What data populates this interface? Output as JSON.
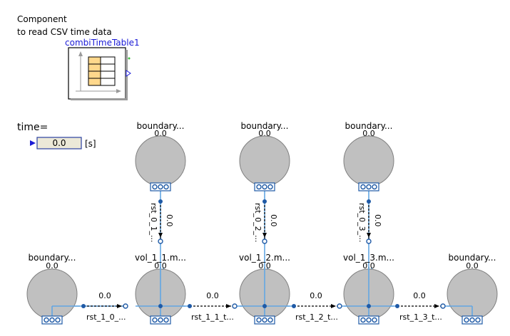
{
  "comment": {
    "line1": "Component",
    "line2": "to read CSV time data"
  },
  "table_component": {
    "name": "combiTimeTable1"
  },
  "time_display": {
    "label": "time=",
    "value": "0.0",
    "unit": "[s]"
  },
  "top_boundaries": [
    {
      "name": "boundary...",
      "value": "0.0"
    },
    {
      "name": "boundary...",
      "value": "0.0"
    },
    {
      "name": "boundary...",
      "value": "0.0"
    }
  ],
  "bottom_left_boundary": {
    "name": "boundary...",
    "value": "0.0"
  },
  "bottom_right_boundary": {
    "name": "boundary...",
    "value": "0.0"
  },
  "volumes": [
    {
      "name": "vol_1_1.m...",
      "value": "0.0"
    },
    {
      "name": "vol_1_2.m...",
      "value": "0.0"
    },
    {
      "name": "vol_1_3.m...",
      "value": "0.0"
    }
  ],
  "vertical_resistors": [
    {
      "name": "rst_0_1_...",
      "value": "0.0"
    },
    {
      "name": "rst_0_2_...",
      "value": "0.0"
    },
    {
      "name": "rst_0_3_...",
      "value": "0.0"
    }
  ],
  "horizontal_resistors": [
    {
      "name": "rst_1_0_...",
      "value": "0.0"
    },
    {
      "name": "rst_1_1_t...",
      "value": "0.0"
    },
    {
      "name": "rst_1_2_t...",
      "value": "0.0"
    },
    {
      "name": "rst_1_3_t...",
      "value": "0.0"
    }
  ],
  "colors": {
    "circle_fill": "#c0c0c0",
    "wire": "#62a6e3",
    "port": "#1f5aa6",
    "table_cell": "#ffd88c"
  }
}
